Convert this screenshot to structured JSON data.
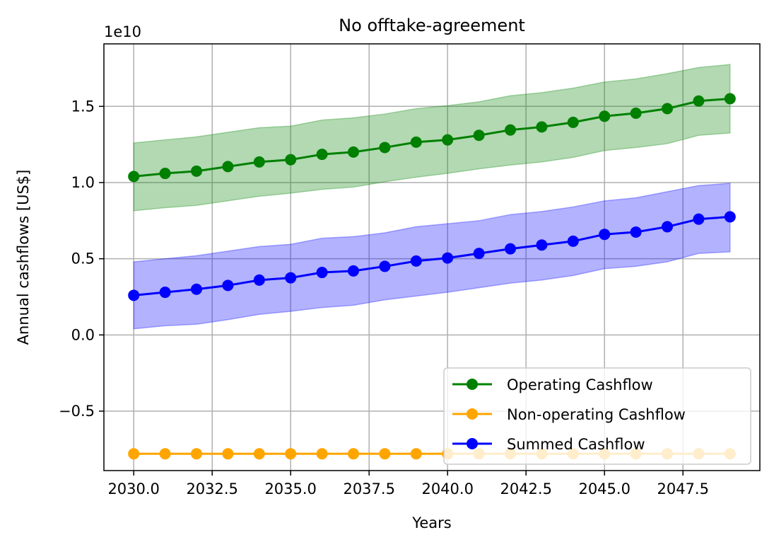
{
  "chart_data": {
    "type": "line",
    "title": "No offtake-agreement",
    "xlabel": "Years",
    "ylabel": "Annual cashflows [US$]",
    "y_scale_label": "1e10",
    "xlim": [
      2029.05,
      2049.95
    ],
    "ylim": [
      -0.89,
      1.91
    ],
    "grid": true,
    "x_ticks": [
      2030.0,
      2032.5,
      2035.0,
      2037.5,
      2040.0,
      2042.5,
      2045.0,
      2047.5
    ],
    "x_tick_labels": [
      "2030.0",
      "2032.5",
      "2035.0",
      "2037.5",
      "2040.0",
      "2042.5",
      "2045.0",
      "2047.5"
    ],
    "y_ticks": [
      -0.5,
      0.0,
      0.5,
      1.0,
      1.5
    ],
    "y_tick_labels": [
      "−0.5",
      "0.0",
      "0.5",
      "1.0",
      "1.5"
    ],
    "x": [
      2030,
      2031,
      2032,
      2033,
      2034,
      2035,
      2036,
      2037,
      2038,
      2039,
      2040,
      2041,
      2042,
      2043,
      2044,
      2045,
      2046,
      2047,
      2048,
      2049
    ],
    "series": [
      {
        "name": "Operating Cashflow",
        "color": "#008000",
        "band_color": "#008000",
        "values": [
          1.04,
          1.06,
          1.075,
          1.105,
          1.135,
          1.15,
          1.185,
          1.2,
          1.23,
          1.265,
          1.28,
          1.31,
          1.345,
          1.365,
          1.395,
          1.435,
          1.455,
          1.485,
          1.535,
          1.55
        ],
        "band_low": [
          0.815,
          0.835,
          0.85,
          0.88,
          0.91,
          0.93,
          0.955,
          0.97,
          1.005,
          1.035,
          1.06,
          1.09,
          1.115,
          1.135,
          1.165,
          1.21,
          1.23,
          1.255,
          1.31,
          1.325
        ],
        "band_high": [
          1.26,
          1.28,
          1.3,
          1.33,
          1.36,
          1.37,
          1.41,
          1.425,
          1.45,
          1.485,
          1.505,
          1.53,
          1.57,
          1.59,
          1.62,
          1.66,
          1.68,
          1.715,
          1.755,
          1.775
        ]
      },
      {
        "name": "Non-operating Cashflow",
        "color": "#FFA500",
        "values": [
          -0.78,
          -0.78,
          -0.78,
          -0.78,
          -0.78,
          -0.78,
          -0.78,
          -0.78,
          -0.78,
          -0.78,
          -0.78,
          -0.78,
          -0.78,
          -0.78,
          -0.78,
          -0.78,
          -0.78,
          -0.78,
          -0.78,
          -0.78
        ]
      },
      {
        "name": "Summed Cashflow",
        "color": "#0000FF",
        "band_color": "#0000FF",
        "values": [
          0.26,
          0.28,
          0.3,
          0.325,
          0.36,
          0.375,
          0.41,
          0.42,
          0.45,
          0.485,
          0.505,
          0.535,
          0.565,
          0.59,
          0.615,
          0.66,
          0.675,
          0.71,
          0.76,
          0.775
        ],
        "band_low": [
          0.04,
          0.06,
          0.07,
          0.1,
          0.135,
          0.155,
          0.18,
          0.195,
          0.23,
          0.255,
          0.28,
          0.31,
          0.34,
          0.36,
          0.39,
          0.435,
          0.45,
          0.48,
          0.535,
          0.545
        ],
        "band_high": [
          0.48,
          0.5,
          0.52,
          0.55,
          0.58,
          0.595,
          0.635,
          0.645,
          0.67,
          0.71,
          0.73,
          0.75,
          0.79,
          0.81,
          0.84,
          0.88,
          0.9,
          0.94,
          0.98,
          0.995
        ]
      }
    ],
    "legend": {
      "placement": "lower-right",
      "entries": [
        "Operating Cashflow",
        "Non-operating Cashflow",
        "Summed Cashflow"
      ]
    }
  }
}
